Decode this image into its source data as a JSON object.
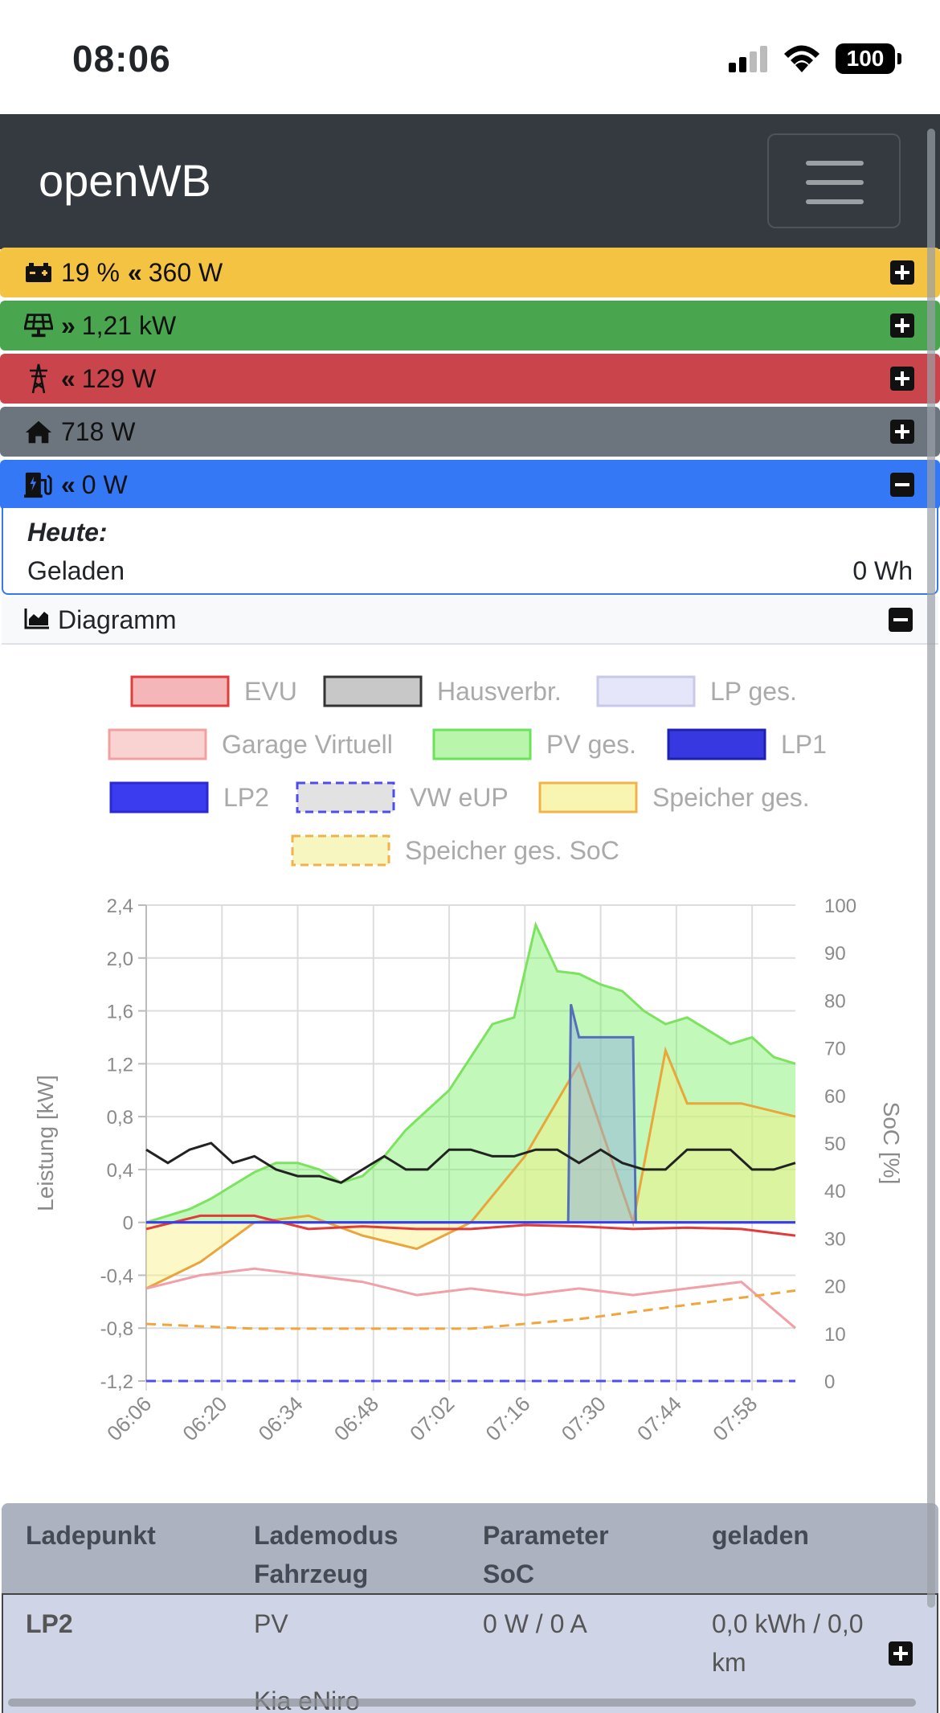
{
  "status_bar": {
    "time": "08:06",
    "battery": "100"
  },
  "navbar": {
    "brand": "openWB"
  },
  "summary": {
    "battery": {
      "soc": "19 %",
      "power": "360 W"
    },
    "pv": {
      "power": "1,21 kW"
    },
    "evu": {
      "power": "129 W"
    },
    "house": {
      "power": "718 W"
    },
    "chargepoints": {
      "power": "0 W"
    }
  },
  "today": {
    "title": "Heute:",
    "charged_label": "Geladen",
    "charged_value": "0 Wh"
  },
  "diagram": {
    "label": "Diagramm"
  },
  "colors": {
    "battery": "#f5c342",
    "pv": "#4aa54f",
    "evu": "#c9444b",
    "house": "#6c757d",
    "lp": "#3478f6"
  },
  "chart_data": {
    "type": "line",
    "legend": [
      "EVU",
      "Hausverbr.",
      "LP ges.",
      "Garage Virtuell",
      "PV ges.",
      "LP1",
      "LP2",
      "VW eUP",
      "Speicher ges.",
      "Speicher ges. SoC"
    ],
    "ylabel": "Leistung [kW]",
    "y2label": "SoC [%]",
    "ylim": [
      -1.2,
      2.4
    ],
    "y2lim": [
      0,
      100
    ],
    "yticks": [
      "2,4",
      "2,0",
      "1,6",
      "1,2",
      "0,8",
      "0,4",
      "0",
      "-0,4",
      "-0,8",
      "-1,2"
    ],
    "y2ticks": [
      "100",
      "90",
      "80",
      "70",
      "60",
      "50",
      "40",
      "30",
      "20",
      "10",
      "0"
    ],
    "xticks": [
      "06:06",
      "06:20",
      "06:34",
      "06:48",
      "07:02",
      "07:16",
      "07:30",
      "07:44",
      "07:58"
    ],
    "grid": true,
    "legend_position": "top",
    "series": [
      {
        "name": "PV ges.",
        "x": [
          0,
          4,
          8,
          12,
          16,
          20,
          24,
          28,
          32,
          36,
          40,
          44,
          48,
          52,
          56,
          60,
          64,
          68,
          72,
          76,
          80,
          84,
          88,
          92,
          96,
          100,
          104,
          108,
          112,
          116,
          120
        ],
        "values": [
          0.0,
          0.05,
          0.1,
          0.18,
          0.28,
          0.38,
          0.45,
          0.45,
          0.4,
          0.3,
          0.35,
          0.5,
          0.7,
          0.85,
          1.0,
          1.25,
          1.5,
          1.55,
          2.25,
          1.9,
          1.88,
          1.8,
          1.75,
          1.6,
          1.5,
          1.55,
          1.45,
          1.35,
          1.4,
          1.25,
          1.2
        ]
      },
      {
        "name": "Hausverbr.",
        "x": [
          0,
          4,
          8,
          12,
          16,
          20,
          24,
          28,
          32,
          36,
          40,
          44,
          48,
          52,
          56,
          60,
          64,
          68,
          72,
          76,
          80,
          84,
          88,
          92,
          96,
          100,
          104,
          108,
          112,
          116,
          120
        ],
        "values": [
          0.55,
          0.45,
          0.55,
          0.6,
          0.45,
          0.5,
          0.4,
          0.35,
          0.35,
          0.3,
          0.4,
          0.5,
          0.4,
          0.4,
          0.55,
          0.55,
          0.5,
          0.5,
          0.55,
          0.55,
          0.45,
          0.55,
          0.45,
          0.4,
          0.4,
          0.55,
          0.55,
          0.55,
          0.4,
          0.4,
          0.45
        ]
      },
      {
        "name": "LP ges.",
        "x": [
          0,
          78,
          78.5,
          80,
          80.5,
          90,
          90.5,
          120
        ],
        "values": [
          0.0,
          0.0,
          1.65,
          1.4,
          1.4,
          1.4,
          0.0,
          0.0
        ]
      },
      {
        "name": "EVU",
        "x": [
          0,
          10,
          20,
          30,
          40,
          50,
          60,
          70,
          80,
          90,
          100,
          110,
          120
        ],
        "values": [
          -0.05,
          0.05,
          0.05,
          -0.05,
          -0.03,
          -0.05,
          -0.05,
          -0.02,
          -0.03,
          -0.05,
          -0.04,
          -0.05,
          -0.1
        ]
      },
      {
        "name": "Garage Virtuell",
        "x": [
          0,
          10,
          20,
          30,
          40,
          50,
          60,
          70,
          80,
          90,
          100,
          110,
          120
        ],
        "values": [
          -0.5,
          -0.4,
          -0.35,
          -0.4,
          -0.45,
          -0.55,
          -0.5,
          -0.55,
          -0.5,
          -0.55,
          -0.5,
          -0.45,
          -0.8
        ]
      },
      {
        "name": "Speicher ges.",
        "x": [
          0,
          10,
          20,
          30,
          40,
          50,
          60,
          70,
          80,
          90,
          96,
          100,
          110,
          120
        ],
        "values": [
          -0.5,
          -0.3,
          0.0,
          0.05,
          -0.1,
          -0.2,
          0.0,
          0.5,
          1.2,
          0.0,
          1.3,
          0.9,
          0.9,
          0.8
        ]
      },
      {
        "name": "Speicher ges. SoC",
        "x": [
          0,
          20,
          40,
          60,
          80,
          100,
          120
        ],
        "values": [
          12,
          11,
          11,
          11,
          13,
          16,
          19
        ]
      }
    ]
  },
  "table": {
    "headers": [
      {
        "l1": "Ladepunkt",
        "l2": ""
      },
      {
        "l1": "Lademodus",
        "l2": "Fahrzeug"
      },
      {
        "l1": "Parameter",
        "l2": "SoC"
      },
      {
        "l1": "geladen",
        "l2": ""
      }
    ],
    "rows": [
      {
        "name": "LP2",
        "mode": "PV",
        "vehicle": "Kia eNiro",
        "param": "0 W / 0 A",
        "charged": "0,0 kWh / 0,0",
        "charged2": "km"
      }
    ]
  }
}
